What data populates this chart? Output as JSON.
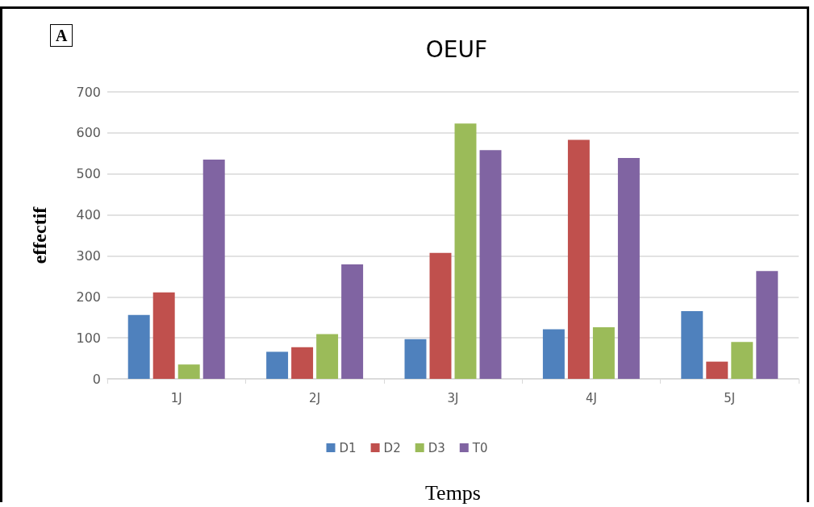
{
  "chart_data": {
    "type": "bar",
    "title": "OEUF",
    "xlabel": "Temps",
    "ylabel": "effectif",
    "annotations": [
      "A"
    ],
    "categories": [
      "1J",
      "2J",
      "3J",
      "4J",
      "5J"
    ],
    "series": [
      {
        "name": "D1",
        "color": "#4f81bd",
        "values": [
          156,
          66,
          97,
          121,
          165
        ]
      },
      {
        "name": "D2",
        "color": "#c0504d",
        "values": [
          211,
          77,
          307,
          583,
          42
        ]
      },
      {
        "name": "D3",
        "color": "#9bbb59",
        "values": [
          35,
          109,
          623,
          126,
          90
        ]
      },
      {
        "name": "T0",
        "color": "#8064a2",
        "values": [
          535,
          279,
          558,
          539,
          263
        ]
      }
    ],
    "ylim": [
      0,
      700
    ],
    "yticks": [
      0,
      100,
      200,
      300,
      400,
      500,
      600,
      700
    ],
    "grid": "y",
    "legend": "bottom"
  }
}
